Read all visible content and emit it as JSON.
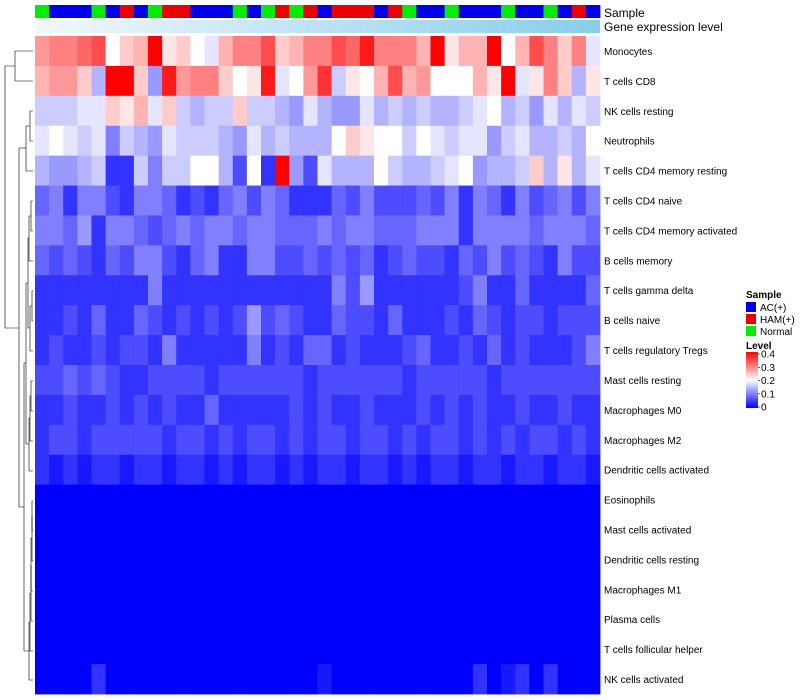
{
  "chart_data": {
    "type": "heatmap",
    "title": "",
    "annotation_tracks": [
      "Sample",
      "Gene expression level"
    ],
    "row_labels": [
      "Monocytes",
      "T cells CD8",
      "NK cells resting",
      "Neutrophils",
      "T cells CD4 memory resting",
      "T cells CD4 naive",
      "T cells CD4 memory activated",
      "B cells memory",
      "T cells gamma delta",
      "B cells naive",
      "T cells regulatory  Tregs",
      "Mast cells resting",
      "Macrophages M0",
      "Macrophages M2",
      "Dendritic cells activated",
      "Eosinophils",
      "Mast cells activated",
      "Dendritic cells resting",
      "Macrophages M1",
      "Plasma cells",
      "T cells follicular helper",
      "NK cells activated"
    ],
    "sample_groups": [
      "N",
      "A",
      "A",
      "A",
      "N",
      "A",
      "H",
      "A",
      "N",
      "H",
      "H",
      "A",
      "A",
      "A",
      "N",
      "A",
      "N",
      "H",
      "N",
      "H",
      "A",
      "H",
      "H",
      "H",
      "A",
      "H",
      "N",
      "A",
      "A",
      "N",
      "A",
      "A",
      "A",
      "N",
      "A",
      "A",
      "N",
      "A",
      "H",
      "A"
    ],
    "values": [
      [
        0.28,
        0.3,
        0.3,
        0.32,
        0.34,
        0.2,
        0.24,
        0.26,
        0.4,
        0.22,
        0.24,
        0.2,
        0.18,
        0.26,
        0.3,
        0.3,
        0.34,
        0.24,
        0.26,
        0.3,
        0.3,
        0.34,
        0.32,
        0.38,
        0.3,
        0.3,
        0.3,
        0.26,
        0.4,
        0.22,
        0.26,
        0.26,
        0.4,
        0.2,
        0.26,
        0.34,
        0.3,
        0.24,
        0.3,
        0.18
      ],
      [
        0.26,
        0.28,
        0.28,
        0.24,
        0.14,
        0.4,
        0.4,
        0.24,
        0.12,
        0.38,
        0.28,
        0.3,
        0.3,
        0.24,
        0.2,
        0.22,
        0.38,
        0.18,
        0.2,
        0.28,
        0.36,
        0.16,
        0.22,
        0.2,
        0.26,
        0.34,
        0.26,
        0.28,
        0.2,
        0.2,
        0.2,
        0.26,
        0.22,
        0.4,
        0.18,
        0.22,
        0.3,
        0.24,
        0.14,
        0.22
      ],
      [
        0.16,
        0.16,
        0.16,
        0.18,
        0.18,
        0.24,
        0.22,
        0.26,
        0.18,
        0.24,
        0.16,
        0.14,
        0.16,
        0.16,
        0.24,
        0.16,
        0.16,
        0.14,
        0.12,
        0.18,
        0.14,
        0.12,
        0.12,
        0.18,
        0.14,
        0.16,
        0.14,
        0.16,
        0.14,
        0.14,
        0.16,
        0.18,
        0.2,
        0.14,
        0.16,
        0.12,
        0.18,
        0.14,
        0.18,
        0.16
      ],
      [
        0.18,
        0.2,
        0.18,
        0.16,
        0.18,
        0.1,
        0.16,
        0.14,
        0.12,
        0.18,
        0.16,
        0.16,
        0.16,
        0.14,
        0.12,
        0.18,
        0.14,
        0.16,
        0.14,
        0.14,
        0.14,
        0.2,
        0.24,
        0.22,
        0.2,
        0.2,
        0.16,
        0.2,
        0.18,
        0.16,
        0.18,
        0.18,
        0.12,
        0.16,
        0.18,
        0.14,
        0.14,
        0.16,
        0.14,
        0.2
      ],
      [
        0.14,
        0.12,
        0.12,
        0.14,
        0.16,
        0.04,
        0.04,
        0.16,
        0.1,
        0.16,
        0.16,
        0.2,
        0.2,
        0.14,
        0.06,
        0.2,
        0.04,
        0.4,
        0.12,
        0.06,
        0.18,
        0.14,
        0.14,
        0.14,
        0.2,
        0.16,
        0.14,
        0.14,
        0.16,
        0.18,
        0.2,
        0.12,
        0.14,
        0.14,
        0.16,
        0.24,
        0.14,
        0.22,
        0.14,
        0.18
      ],
      [
        0.08,
        0.1,
        0.04,
        0.1,
        0.1,
        0.06,
        0.04,
        0.1,
        0.1,
        0.08,
        0.04,
        0.06,
        0.04,
        0.08,
        0.1,
        0.06,
        0.1,
        0.08,
        0.04,
        0.04,
        0.04,
        0.08,
        0.06,
        0.1,
        0.06,
        0.06,
        0.06,
        0.08,
        0.06,
        0.1,
        0.04,
        0.1,
        0.08,
        0.04,
        0.1,
        0.06,
        0.08,
        0.1,
        0.06,
        0.1
      ],
      [
        0.1,
        0.1,
        0.08,
        0.12,
        0.04,
        0.1,
        0.1,
        0.08,
        0.06,
        0.08,
        0.1,
        0.08,
        0.1,
        0.1,
        0.08,
        0.1,
        0.1,
        0.08,
        0.08,
        0.08,
        0.1,
        0.08,
        0.1,
        0.1,
        0.08,
        0.08,
        0.08,
        0.1,
        0.1,
        0.1,
        0.04,
        0.1,
        0.1,
        0.1,
        0.1,
        0.08,
        0.1,
        0.1,
        0.1,
        0.08
      ],
      [
        0.08,
        0.06,
        0.08,
        0.06,
        0.04,
        0.08,
        0.06,
        0.1,
        0.1,
        0.06,
        0.04,
        0.08,
        0.1,
        0.04,
        0.04,
        0.1,
        0.1,
        0.06,
        0.06,
        0.08,
        0.06,
        0.08,
        0.06,
        0.08,
        0.04,
        0.06,
        0.08,
        0.06,
        0.06,
        0.04,
        0.08,
        0.06,
        0.1,
        0.06,
        0.08,
        0.06,
        0.04,
        0.1,
        0.06,
        0.06
      ],
      [
        0.04,
        0.04,
        0.04,
        0.04,
        0.04,
        0.04,
        0.04,
        0.04,
        0.1,
        0.04,
        0.04,
        0.04,
        0.04,
        0.04,
        0.04,
        0.04,
        0.04,
        0.04,
        0.04,
        0.04,
        0.04,
        0.1,
        0.06,
        0.12,
        0.04,
        0.04,
        0.04,
        0.04,
        0.04,
        0.04,
        0.06,
        0.1,
        0.04,
        0.04,
        0.08,
        0.04,
        0.04,
        0.04,
        0.04,
        0.08
      ],
      [
        0.04,
        0.04,
        0.06,
        0.04,
        0.08,
        0.04,
        0.04,
        0.08,
        0.06,
        0.04,
        0.06,
        0.04,
        0.06,
        0.04,
        0.06,
        0.12,
        0.06,
        0.08,
        0.06,
        0.04,
        0.04,
        0.08,
        0.06,
        0.06,
        0.04,
        0.08,
        0.04,
        0.04,
        0.04,
        0.06,
        0.04,
        0.08,
        0.06,
        0.04,
        0.06,
        0.06,
        0.04,
        0.06,
        0.06,
        0.06
      ],
      [
        0.04,
        0.06,
        0.04,
        0.04,
        0.06,
        0.04,
        0.06,
        0.06,
        0.04,
        0.1,
        0.04,
        0.04,
        0.04,
        0.04,
        0.04,
        0.1,
        0.04,
        0.06,
        0.04,
        0.08,
        0.08,
        0.04,
        0.06,
        0.04,
        0.04,
        0.04,
        0.06,
        0.08,
        0.04,
        0.04,
        0.06,
        0.04,
        0.08,
        0.04,
        0.06,
        0.04,
        0.04,
        0.04,
        0.06,
        0.1
      ],
      [
        0.06,
        0.06,
        0.08,
        0.06,
        0.08,
        0.06,
        0.04,
        0.04,
        0.06,
        0.06,
        0.06,
        0.06,
        0.04,
        0.06,
        0.06,
        0.06,
        0.06,
        0.06,
        0.06,
        0.04,
        0.06,
        0.06,
        0.06,
        0.06,
        0.06,
        0.06,
        0.04,
        0.06,
        0.06,
        0.06,
        0.06,
        0.06,
        0.04,
        0.06,
        0.06,
        0.06,
        0.06,
        0.06,
        0.06,
        0.06
      ],
      [
        0.04,
        0.04,
        0.06,
        0.04,
        0.04,
        0.06,
        0.04,
        0.06,
        0.04,
        0.06,
        0.04,
        0.04,
        0.08,
        0.04,
        0.04,
        0.04,
        0.04,
        0.04,
        0.06,
        0.04,
        0.06,
        0.04,
        0.04,
        0.06,
        0.04,
        0.04,
        0.04,
        0.06,
        0.04,
        0.06,
        0.04,
        0.06,
        0.04,
        0.04,
        0.06,
        0.04,
        0.04,
        0.06,
        0.04,
        0.04
      ],
      [
        0.04,
        0.06,
        0.06,
        0.04,
        0.06,
        0.06,
        0.06,
        0.06,
        0.06,
        0.04,
        0.06,
        0.06,
        0.04,
        0.06,
        0.04,
        0.06,
        0.06,
        0.04,
        0.06,
        0.04,
        0.06,
        0.06,
        0.04,
        0.06,
        0.06,
        0.04,
        0.06,
        0.04,
        0.06,
        0.06,
        0.04,
        0.06,
        0.04,
        0.06,
        0.04,
        0.06,
        0.06,
        0.04,
        0.06,
        0.04
      ],
      [
        0.04,
        0.02,
        0.04,
        0.02,
        0.04,
        0.04,
        0.02,
        0.04,
        0.04,
        0.02,
        0.04,
        0.04,
        0.02,
        0.04,
        0.02,
        0.04,
        0.04,
        0.02,
        0.04,
        0.02,
        0.04,
        0.04,
        0.02,
        0.04,
        0.04,
        0.02,
        0.04,
        0.02,
        0.04,
        0.04,
        0.02,
        0.04,
        0.04,
        0.02,
        0.04,
        0.04,
        0.02,
        0.04,
        0.04,
        0.02
      ],
      [
        0,
        0,
        0,
        0,
        0,
        0,
        0,
        0,
        0,
        0,
        0,
        0,
        0,
        0,
        0,
        0,
        0,
        0,
        0,
        0,
        0,
        0,
        0,
        0,
        0,
        0,
        0,
        0,
        0,
        0,
        0,
        0,
        0,
        0,
        0,
        0,
        0,
        0,
        0,
        0
      ],
      [
        0,
        0,
        0,
        0,
        0,
        0,
        0,
        0,
        0,
        0,
        0,
        0,
        0,
        0,
        0,
        0,
        0,
        0,
        0,
        0,
        0,
        0,
        0,
        0,
        0,
        0,
        0,
        0,
        0,
        0,
        0,
        0,
        0,
        0,
        0,
        0,
        0,
        0,
        0,
        0
      ],
      [
        0,
        0,
        0,
        0,
        0,
        0,
        0,
        0,
        0,
        0,
        0,
        0,
        0,
        0,
        0,
        0,
        0,
        0,
        0,
        0,
        0,
        0,
        0,
        0,
        0,
        0,
        0,
        0,
        0,
        0,
        0,
        0,
        0,
        0,
        0,
        0,
        0,
        0,
        0,
        0
      ],
      [
        0,
        0,
        0,
        0,
        0,
        0,
        0,
        0,
        0,
        0,
        0,
        0,
        0,
        0,
        0,
        0,
        0,
        0,
        0,
        0,
        0,
        0,
        0,
        0,
        0,
        0,
        0,
        0,
        0,
        0,
        0,
        0,
        0,
        0,
        0,
        0,
        0,
        0,
        0,
        0
      ],
      [
        0,
        0,
        0,
        0,
        0,
        0,
        0,
        0,
        0,
        0,
        0,
        0,
        0,
        0,
        0,
        0,
        0,
        0,
        0,
        0,
        0,
        0,
        0,
        0,
        0,
        0,
        0,
        0,
        0,
        0,
        0,
        0,
        0,
        0,
        0,
        0,
        0,
        0,
        0,
        0
      ],
      [
        0,
        0,
        0,
        0,
        0,
        0,
        0,
        0,
        0,
        0,
        0,
        0,
        0,
        0,
        0,
        0,
        0,
        0,
        0,
        0,
        0,
        0,
        0,
        0,
        0,
        0,
        0,
        0,
        0,
        0,
        0,
        0,
        0,
        0,
        0,
        0,
        0,
        0,
        0,
        0
      ],
      [
        0,
        0,
        0,
        0,
        0.04,
        0,
        0,
        0,
        0,
        0,
        0,
        0,
        0,
        0,
        0,
        0,
        0,
        0,
        0,
        0,
        0.02,
        0,
        0,
        0,
        0,
        0,
        0,
        0,
        0,
        0,
        0,
        0.04,
        0,
        0.02,
        0.04,
        0,
        0.04,
        0,
        0,
        0
      ]
    ],
    "legend": {
      "sample": {
        "title": "Sample",
        "entries": [
          {
            "key": "A",
            "label": "AC(+)",
            "color": "#0000ee"
          },
          {
            "key": "H",
            "label": "HAM(+)",
            "color": "#ee0000"
          },
          {
            "key": "N",
            "label": "Normal",
            "color": "#00ee00"
          }
        ]
      },
      "level": {
        "title": "Level",
        "ticks": [
          "0.4",
          "0.3",
          "0.2",
          "0.1",
          "0"
        ],
        "range": [
          0,
          0.4
        ]
      }
    },
    "colors": {
      "low": "#0000ff",
      "mid": "#ffffff",
      "high": "#ff0000",
      "expression_track_left": "#f2f8fb",
      "expression_track_right": "#87ceeb"
    }
  }
}
